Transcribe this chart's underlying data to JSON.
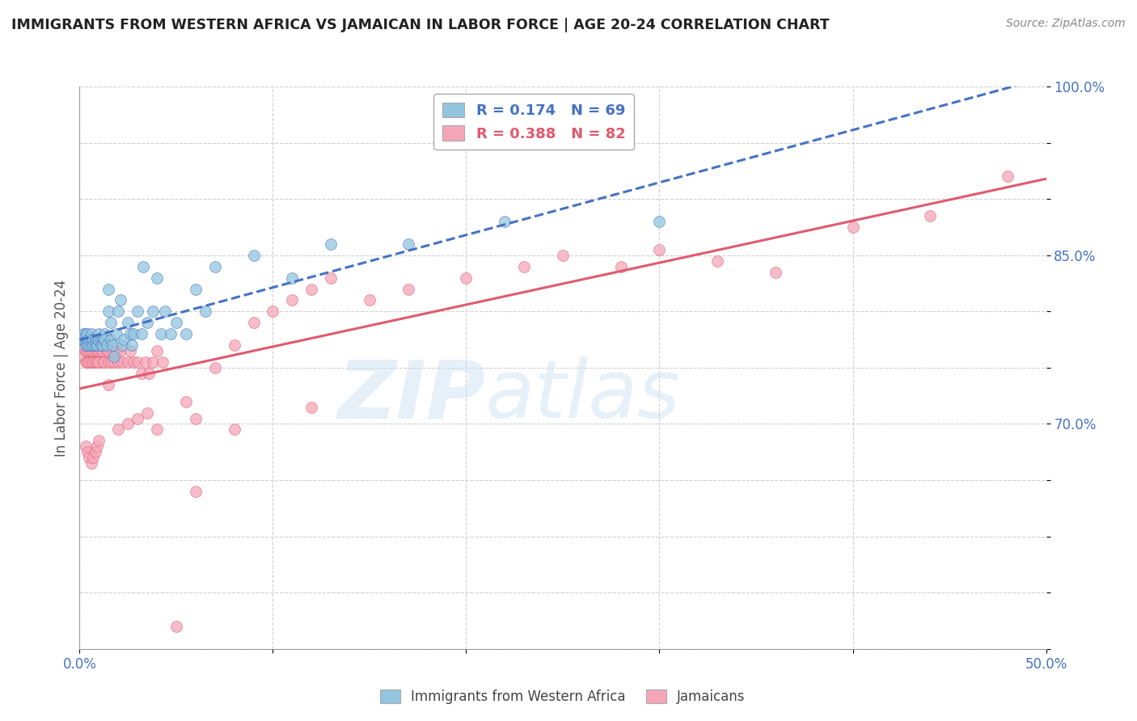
{
  "title": "IMMIGRANTS FROM WESTERN AFRICA VS JAMAICAN IN LABOR FORCE | AGE 20-24 CORRELATION CHART",
  "source_text": "Source: ZipAtlas.com",
  "ylabel": "In Labor Force | Age 20-24",
  "x_min": 0.0,
  "x_max": 0.5,
  "y_min": 0.5,
  "y_max": 1.0,
  "x_ticks": [
    0.0,
    0.1,
    0.2,
    0.3,
    0.4,
    0.5
  ],
  "x_tick_labels": [
    "0.0%",
    "",
    "",
    "",
    "",
    "50.0%"
  ],
  "y_ticks": [
    0.5,
    0.55,
    0.6,
    0.65,
    0.7,
    0.75,
    0.8,
    0.85,
    0.9,
    0.95,
    1.0
  ],
  "y_tick_labels": [
    "",
    "",
    "",
    "",
    "70.0%",
    "",
    "",
    "85.0%",
    "",
    "",
    "100.0%"
  ],
  "blue_color": "#92c5de",
  "pink_color": "#f4a6b8",
  "trend_blue": "#4472c4",
  "trend_pink": "#e05a6e",
  "R_blue": 0.174,
  "N_blue": 69,
  "R_pink": 0.388,
  "N_pink": 82,
  "legend1": "Immigrants from Western Africa",
  "legend2": "Jamaicans",
  "watermark_zip": "ZIP",
  "watermark_atlas": "atlas",
  "blue_x": [
    0.001,
    0.002,
    0.002,
    0.003,
    0.003,
    0.003,
    0.004,
    0.004,
    0.004,
    0.005,
    0.005,
    0.005,
    0.006,
    0.006,
    0.006,
    0.007,
    0.007,
    0.007,
    0.008,
    0.008,
    0.008,
    0.009,
    0.009,
    0.01,
    0.01,
    0.01,
    0.011,
    0.011,
    0.012,
    0.012,
    0.013,
    0.013,
    0.013,
    0.014,
    0.015,
    0.015,
    0.016,
    0.016,
    0.017,
    0.018,
    0.019,
    0.02,
    0.021,
    0.022,
    0.023,
    0.025,
    0.026,
    0.027,
    0.028,
    0.03,
    0.032,
    0.033,
    0.035,
    0.038,
    0.04,
    0.042,
    0.044,
    0.047,
    0.05,
    0.055,
    0.06,
    0.065,
    0.07,
    0.09,
    0.11,
    0.13,
    0.17,
    0.22,
    0.3
  ],
  "blue_y": [
    0.775,
    0.775,
    0.78,
    0.775,
    0.78,
    0.77,
    0.775,
    0.77,
    0.78,
    0.775,
    0.77,
    0.775,
    0.775,
    0.77,
    0.78,
    0.775,
    0.77,
    0.775,
    0.775,
    0.77,
    0.775,
    0.775,
    0.77,
    0.775,
    0.78,
    0.775,
    0.775,
    0.77,
    0.775,
    0.77,
    0.775,
    0.78,
    0.775,
    0.77,
    0.8,
    0.82,
    0.79,
    0.775,
    0.77,
    0.76,
    0.78,
    0.8,
    0.81,
    0.77,
    0.775,
    0.79,
    0.78,
    0.77,
    0.78,
    0.8,
    0.78,
    0.84,
    0.79,
    0.8,
    0.83,
    0.78,
    0.8,
    0.78,
    0.79,
    0.78,
    0.82,
    0.8,
    0.84,
    0.85,
    0.83,
    0.86,
    0.86,
    0.88,
    0.88
  ],
  "pink_x": [
    0.001,
    0.002,
    0.002,
    0.003,
    0.003,
    0.004,
    0.004,
    0.005,
    0.005,
    0.006,
    0.006,
    0.007,
    0.007,
    0.008,
    0.008,
    0.009,
    0.009,
    0.01,
    0.01,
    0.011,
    0.012,
    0.012,
    0.013,
    0.014,
    0.015,
    0.015,
    0.016,
    0.017,
    0.018,
    0.019,
    0.02,
    0.021,
    0.022,
    0.025,
    0.026,
    0.028,
    0.03,
    0.032,
    0.034,
    0.036,
    0.038,
    0.04,
    0.043,
    0.05,
    0.055,
    0.06,
    0.07,
    0.08,
    0.09,
    0.1,
    0.11,
    0.12,
    0.13,
    0.15,
    0.17,
    0.2,
    0.23,
    0.25,
    0.28,
    0.3,
    0.33,
    0.36,
    0.4,
    0.44,
    0.48,
    0.003,
    0.004,
    0.005,
    0.006,
    0.007,
    0.008,
    0.009,
    0.01,
    0.015,
    0.02,
    0.025,
    0.03,
    0.035,
    0.04,
    0.06,
    0.08,
    0.12
  ],
  "pink_y": [
    0.775,
    0.77,
    0.76,
    0.765,
    0.755,
    0.765,
    0.755,
    0.765,
    0.755,
    0.765,
    0.755,
    0.765,
    0.755,
    0.765,
    0.755,
    0.765,
    0.755,
    0.765,
    0.755,
    0.765,
    0.755,
    0.765,
    0.755,
    0.765,
    0.755,
    0.765,
    0.755,
    0.765,
    0.755,
    0.765,
    0.755,
    0.765,
    0.755,
    0.755,
    0.765,
    0.755,
    0.755,
    0.745,
    0.755,
    0.745,
    0.755,
    0.765,
    0.755,
    0.52,
    0.72,
    0.64,
    0.75,
    0.77,
    0.79,
    0.8,
    0.81,
    0.82,
    0.83,
    0.81,
    0.82,
    0.83,
    0.84,
    0.85,
    0.84,
    0.855,
    0.845,
    0.835,
    0.875,
    0.885,
    0.92,
    0.68,
    0.675,
    0.67,
    0.665,
    0.67,
    0.675,
    0.68,
    0.685,
    0.735,
    0.695,
    0.7,
    0.705,
    0.71,
    0.695,
    0.705,
    0.695,
    0.715
  ]
}
